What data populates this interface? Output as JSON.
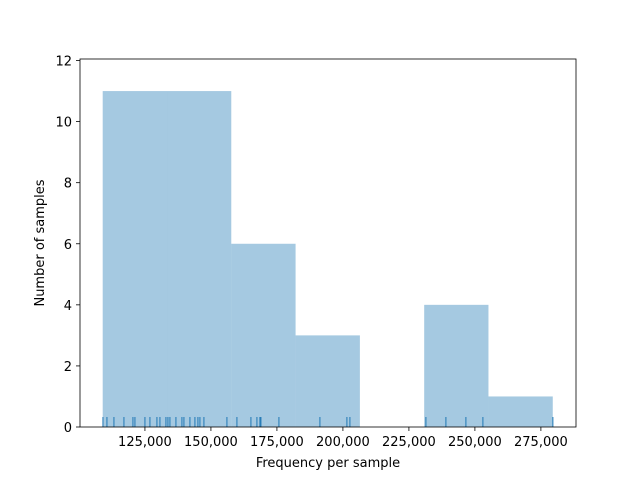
{
  "chart_data": {
    "type": "histogram",
    "xlabel": "Frequency per sample",
    "ylabel": "Number of samples",
    "bins": [
      109000,
      133360,
      157710,
      182070,
      206430,
      230790,
      255140,
      279500
    ],
    "values": [
      11,
      11,
      6,
      3,
      0,
      4,
      1
    ],
    "color": "#1f77b4",
    "rug": [
      109090,
      110607,
      113258,
      117046,
      120455,
      121212,
      125000,
      126894,
      129545,
      130682,
      132955,
      133712,
      134470,
      136742,
      139015,
      139773,
      142045,
      143939,
      145076,
      145833,
      147348,
      156061,
      159848,
      165152,
      167424,
      168561,
      168939,
      175758,
      191288,
      201515,
      202652,
      231439,
      239015,
      246591,
      253030,
      279545
    ],
    "xlim": [
      100400,
      288300
    ],
    "ylim": [
      0,
      12.05
    ],
    "xticks": [
      {
        "value": 125000,
        "label": "125,000"
      },
      {
        "value": 150000,
        "label": "150,000"
      },
      {
        "value": 175000,
        "label": "175,000"
      },
      {
        "value": 200000,
        "label": "200,000"
      },
      {
        "value": 225000,
        "label": "225,000"
      },
      {
        "value": 250000,
        "label": "250,000"
      },
      {
        "value": 275000,
        "label": "275,000"
      }
    ],
    "yticks": [
      0,
      2,
      4,
      6,
      8,
      10,
      12
    ]
  }
}
